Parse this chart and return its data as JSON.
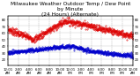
{
  "title": "Milwaukee Weather Outdoor Temp / Dew Point\nby Minute\n(24 Hours) (Alternate)",
  "title_fontsize": 4.2,
  "bg_color": "#ffffff",
  "plot_bg_color": "#ffffff",
  "grid_color": "#aaaaaa",
  "temp_color": "#dd0000",
  "dew_color": "#0000cc",
  "ylim": [
    10,
    85
  ],
  "xlim": [
    0,
    1440
  ],
  "tick_fontsize": 2.8,
  "yticks": [
    20,
    30,
    40,
    50,
    60,
    70,
    80
  ],
  "xtick_positions": [
    0,
    120,
    240,
    360,
    480,
    600,
    720,
    840,
    960,
    1080,
    1200,
    1320,
    1440
  ],
  "xtick_labels": [
    "12:01\nAM",
    "2:00\nAM",
    "4:00\nAM",
    "6:00\nAM",
    "8:00\nAM",
    "10:00\nAM",
    "12:01\nPM",
    "2:00\nPM",
    "4:00\nPM",
    "6:00\nPM",
    "8:00\nPM",
    "10:00\nPM",
    "12:00\nAM"
  ]
}
